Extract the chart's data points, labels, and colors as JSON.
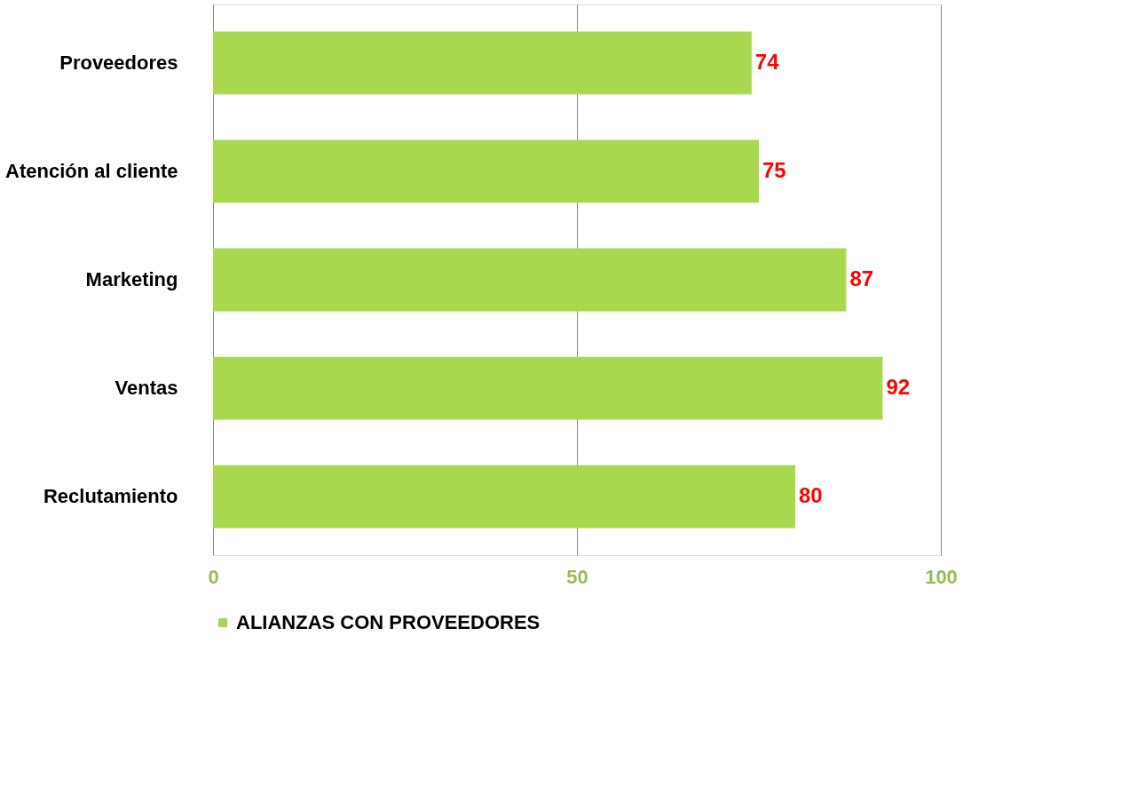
{
  "chart_data": {
    "type": "bar",
    "orientation": "horizontal",
    "categories": [
      "Proveedores",
      "Atención al cliente",
      "Marketing",
      "Ventas",
      "Reclutamiento"
    ],
    "series": [
      {
        "name": "ALIANZAS CON PROVEEDORES",
        "color": "#a8d84e",
        "values": [
          74,
          75,
          87,
          92,
          80
        ]
      }
    ],
    "xlim": [
      0,
      100
    ],
    "xticks": [
      0,
      50,
      100
    ],
    "grid": "x",
    "legend": "bottom",
    "data_labels": true
  }
}
